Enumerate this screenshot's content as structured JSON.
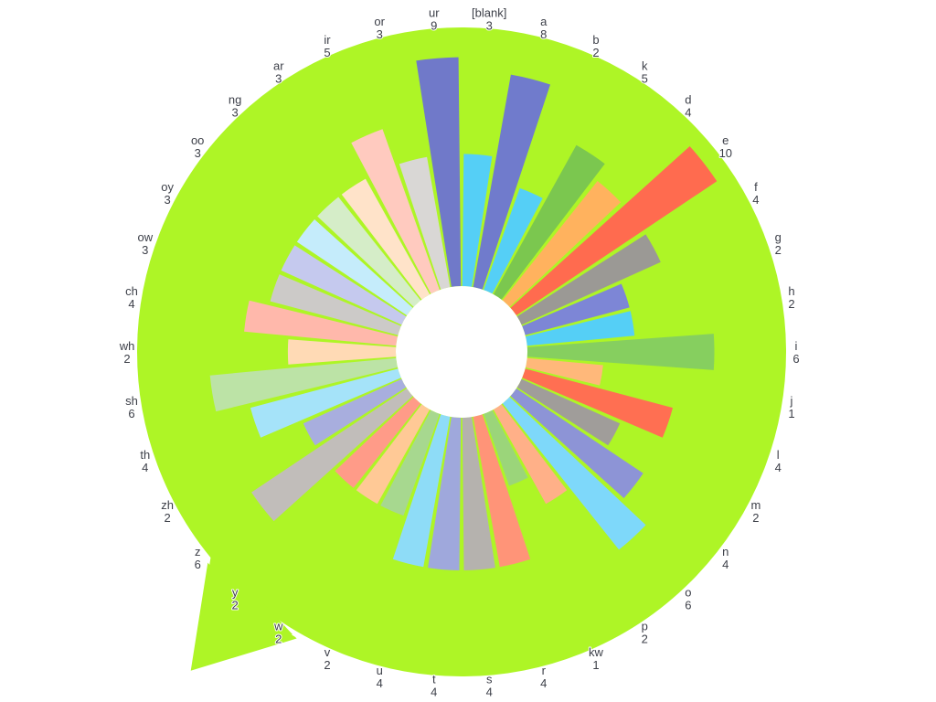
{
  "chart_data": {
    "type": "pie",
    "variant": "radial-bar",
    "categories": [
      "[blank]",
      "a",
      "b",
      "k",
      "d",
      "e",
      "f",
      "g",
      "h",
      "i",
      "j",
      "l",
      "m",
      "n",
      "o",
      "p",
      "kw",
      "r",
      "s",
      "t",
      "u",
      "v",
      "w",
      "y",
      "z",
      "zh",
      "th",
      "sh",
      "wh",
      "ch",
      "ow",
      "oy",
      "oo",
      "ng",
      "ar",
      "ir",
      "or",
      "ur"
    ],
    "values": [
      3,
      8,
      2,
      5,
      4,
      10,
      4,
      2,
      2,
      6,
      1,
      4,
      2,
      4,
      6,
      2,
      1,
      4,
      4,
      4,
      4,
      2,
      2,
      2,
      6,
      2,
      4,
      6,
      2,
      4,
      3,
      3,
      3,
      3,
      3,
      5,
      3,
      9
    ],
    "colors": [
      "#55cff6",
      "#707bcc",
      "#55cff6",
      "#7bc74f",
      "#ffb25e",
      "#ff6b4f",
      "#9b9995",
      "#7d86d6",
      "#55cff6",
      "#86cf5f",
      "#ffb87a",
      "#ff6f52",
      "#a09d9a",
      "#8d94d6",
      "#7ed8fa",
      "#ffb088",
      "#9bd57a",
      "#ff9478",
      "#b5b2ae",
      "#9fa8dc",
      "#8edcf7",
      "#a7d88f",
      "#ffc996",
      "#ff9b88",
      "#c1bdba",
      "#a8aede",
      "#a5e3f9",
      "#bce3a6",
      "#ffdab5",
      "#ffb8ab",
      "#cccac8",
      "#c5c9ee",
      "#c5ecfb",
      "#d5edc8",
      "#ffe3c9",
      "#ffcabf",
      "#d9d7d5",
      "#7079c9"
    ],
    "background_color": "#aef526"
  }
}
